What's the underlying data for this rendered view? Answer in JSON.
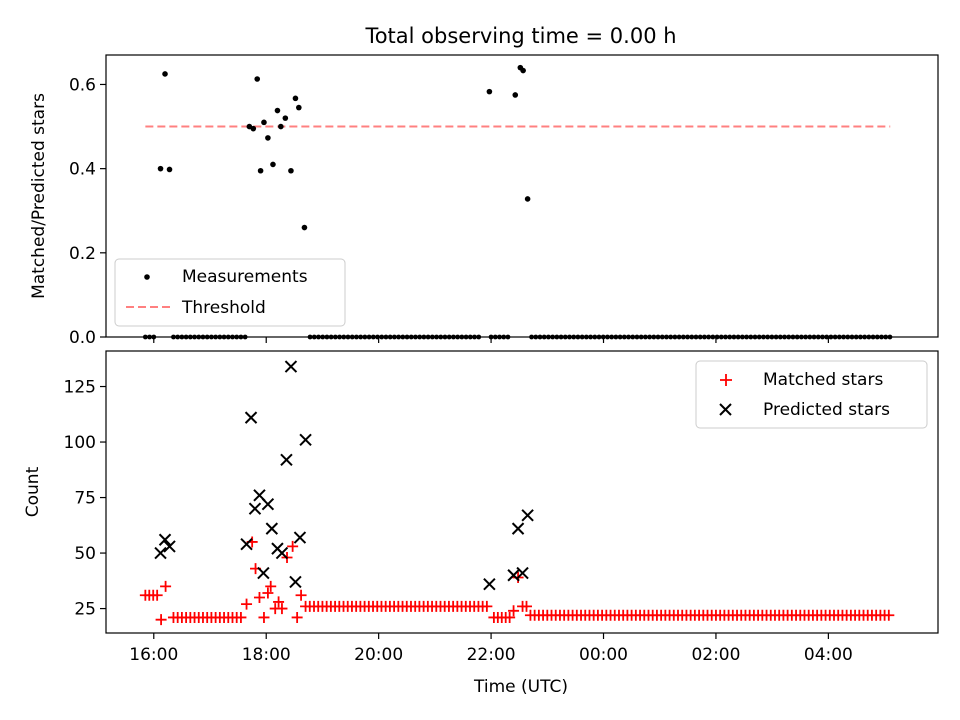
{
  "title": "Total observing time = 0.00 h",
  "chart_data": [
    {
      "type": "scatter",
      "ylabel": "Matched/Predicted stars",
      "ylim": [
        0,
        0.67
      ],
      "yticks": [
        "0.0",
        "0.2",
        "0.4",
        "0.6"
      ],
      "ytick_values": [
        0.0,
        0.2,
        0.4,
        0.6
      ],
      "legend": {
        "placement": "lower-left",
        "entries": [
          "Measurements",
          "Threshold"
        ]
      },
      "threshold": {
        "name": "Threshold",
        "value": 0.5,
        "x_range": [
          15.85,
          29.1
        ],
        "color": "#ff8080"
      },
      "series": [
        {
          "name": "Measurements",
          "color": "#000000",
          "points": [
            [
              16.12,
              0.4
            ],
            [
              16.2,
              0.625
            ],
            [
              16.28,
              0.398
            ],
            [
              17.7,
              0.5
            ],
            [
              17.77,
              0.495
            ],
            [
              17.84,
              0.613
            ],
            [
              17.9,
              0.395
            ],
            [
              17.96,
              0.51
            ],
            [
              18.03,
              0.473
            ],
            [
              18.12,
              0.41
            ],
            [
              18.2,
              0.538
            ],
            [
              18.26,
              0.5
            ],
            [
              18.34,
              0.52
            ],
            [
              18.44,
              0.395
            ],
            [
              18.52,
              0.567
            ],
            [
              18.58,
              0.545
            ],
            [
              18.68,
              0.26
            ],
            [
              21.97,
              0.583
            ],
            [
              22.43,
              0.575
            ],
            [
              22.52,
              0.64
            ],
            [
              22.57,
              0.633
            ],
            [
              22.65,
              0.328
            ]
          ],
          "zero_segments": [
            [
              15.85,
              16.05
            ],
            [
              16.35,
              17.65
            ],
            [
              18.78,
              21.85
            ],
            [
              22.0,
              22.35
            ],
            [
              22.72,
              29.1
            ]
          ],
          "zero_step_h": 0.075
        }
      ]
    },
    {
      "type": "scatter",
      "xlabel": "Time (UTC)",
      "ylabel": "Count",
      "xlim": [
        15.15,
        29.95
      ],
      "ylim": [
        14,
        141
      ],
      "xticks": [
        "16:00",
        "18:00",
        "20:00",
        "22:00",
        "00:00",
        "02:00",
        "04:00"
      ],
      "xtick_values": [
        16,
        18,
        20,
        22,
        24,
        26,
        28
      ],
      "yticks": [
        "25",
        "50",
        "75",
        "100",
        "125"
      ],
      "ytick_values": [
        25,
        50,
        75,
        100,
        125
      ],
      "legend": {
        "placement": "upper-right",
        "entries": [
          "Matched stars",
          "Predicted stars"
        ]
      },
      "series": [
        {
          "name": "Matched stars",
          "marker": "plus",
          "color": "#ff0000",
          "points": [
            [
              15.85,
              31
            ],
            [
              15.92,
              31
            ],
            [
              15.99,
              31
            ],
            [
              16.06,
              31
            ],
            [
              16.13,
              20
            ],
            [
              16.21,
              35
            ],
            [
              17.65,
              27
            ],
            [
              17.75,
              55
            ],
            [
              17.81,
              43
            ],
            [
              17.88,
              30
            ],
            [
              17.96,
              21
            ],
            [
              18.03,
              32
            ],
            [
              18.08,
              35
            ],
            [
              18.16,
              25
            ],
            [
              18.22,
              28
            ],
            [
              18.28,
              25
            ],
            [
              18.37,
              48
            ],
            [
              18.47,
              53
            ],
            [
              18.55,
              21
            ],
            [
              18.62,
              31
            ],
            [
              22.05,
              21
            ],
            [
              22.12,
              21
            ],
            [
              22.19,
              21
            ],
            [
              22.26,
              21
            ],
            [
              22.33,
              21
            ],
            [
              22.4,
              24
            ],
            [
              22.48,
              39
            ],
            [
              22.56,
              26
            ],
            [
              22.63,
              26
            ]
          ],
          "constant_segments": [
            {
              "from": 16.35,
              "to": 17.55,
              "value": 21
            },
            {
              "from": 18.7,
              "to": 21.95,
              "value": 26
            },
            {
              "from": 22.7,
              "to": 29.1,
              "value": 22
            }
          ],
          "step_h": 0.075
        },
        {
          "name": "Predicted stars",
          "marker": "x",
          "color": "#000000",
          "points": [
            [
              16.12,
              50
            ],
            [
              16.2,
              56
            ],
            [
              16.28,
              53
            ],
            [
              17.65,
              54
            ],
            [
              17.73,
              111
            ],
            [
              17.8,
              70
            ],
            [
              17.88,
              76
            ],
            [
              17.95,
              41
            ],
            [
              18.03,
              72
            ],
            [
              18.1,
              61
            ],
            [
              18.2,
              52
            ],
            [
              18.28,
              50
            ],
            [
              18.36,
              92
            ],
            [
              18.44,
              134
            ],
            [
              18.52,
              37
            ],
            [
              18.6,
              57
            ],
            [
              18.7,
              101
            ],
            [
              21.97,
              36
            ],
            [
              22.4,
              40
            ],
            [
              22.48,
              61
            ],
            [
              22.56,
              41
            ],
            [
              22.65,
              67
            ]
          ]
        }
      ]
    }
  ]
}
